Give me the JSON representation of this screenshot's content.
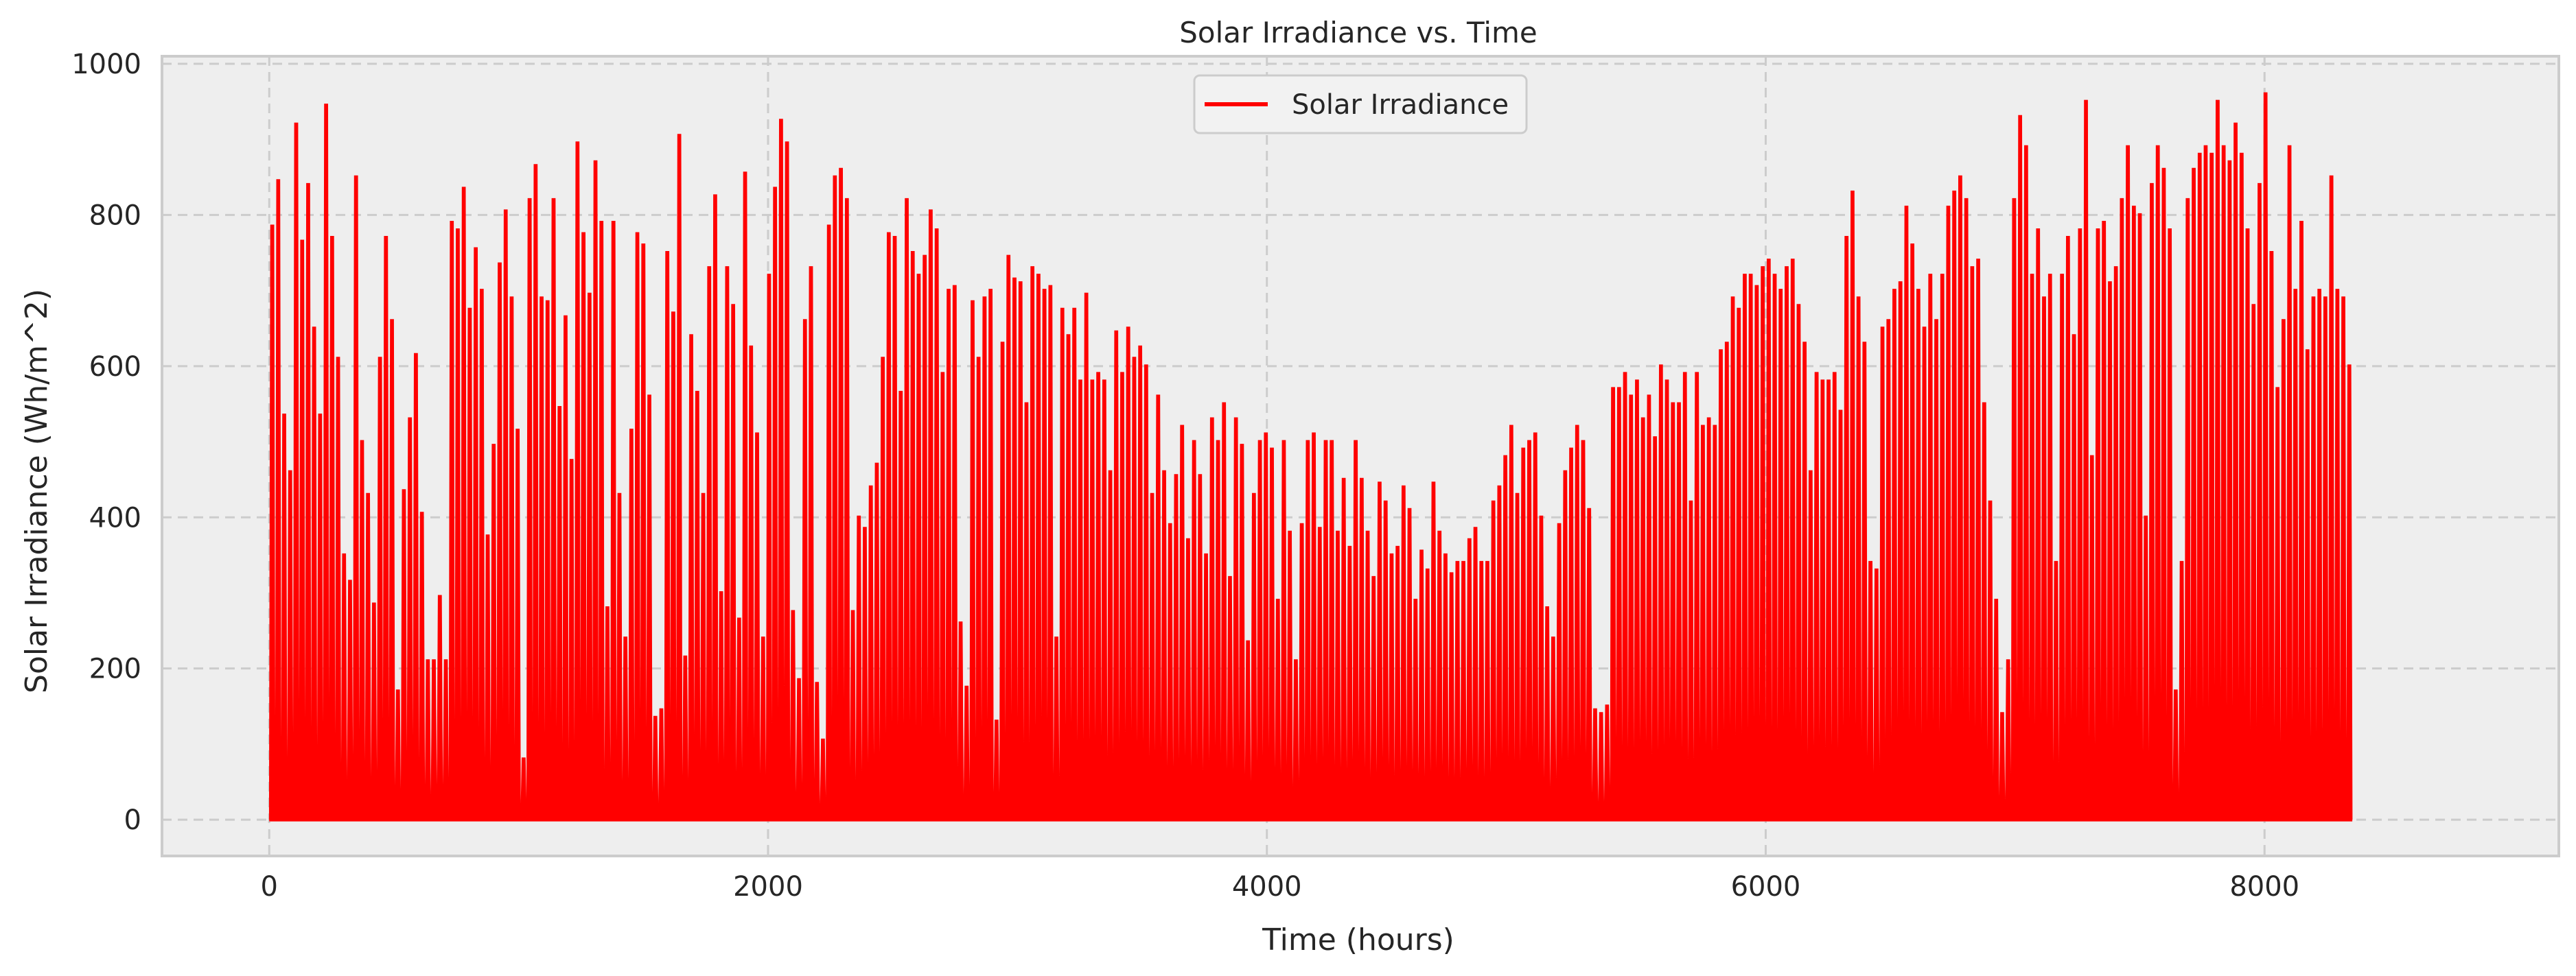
{
  "chart_data": {
    "type": "line",
    "title": "Solar Irradiance vs. Time",
    "xlabel": "Time (hours)",
    "ylabel": "Solar Irradiance (Wh/m^2)",
    "xlim": [
      -430,
      9180
    ],
    "ylim": [
      -48,
      1010
    ],
    "xticks": [
      0,
      2000,
      4000,
      6000,
      8000
    ],
    "yticks": [
      0,
      200,
      400,
      600,
      800,
      1000
    ],
    "grid": true,
    "legend_position": "top-center",
    "x_start_hours": 0,
    "x_end_hours": 8760,
    "x_step_hours": 24,
    "series": [
      {
        "name": "Solar Irradiance",
        "color": "#ff0000",
        "daily_peak_values": [
          785,
          845,
          535,
          460,
          920,
          765,
          840,
          650,
          535,
          945,
          770,
          610,
          350,
          315,
          850,
          500,
          430,
          285,
          610,
          770,
          660,
          170,
          435,
          530,
          615,
          405,
          210,
          210,
          295,
          210,
          790,
          780,
          835,
          675,
          755,
          700,
          375,
          495,
          735,
          805,
          690,
          515,
          80,
          820,
          865,
          690,
          685,
          820,
          545,
          665,
          475,
          895,
          775,
          695,
          870,
          790,
          280,
          790,
          430,
          240,
          515,
          775,
          760,
          560,
          135,
          145,
          750,
          670,
          905,
          215,
          640,
          565,
          430,
          730,
          825,
          300,
          730,
          680,
          265,
          855,
          625,
          510,
          240,
          720,
          835,
          925,
          895,
          275,
          185,
          660,
          730,
          180,
          105,
          785,
          850,
          860,
          820,
          275,
          400,
          385,
          440,
          470,
          610,
          775,
          770,
          565,
          820,
          750,
          720,
          745,
          805,
          780,
          590,
          700,
          705,
          260,
          175,
          685,
          610,
          690,
          700,
          130,
          630,
          745,
          715,
          710,
          550,
          730,
          720,
          700,
          705,
          240,
          675,
          640,
          675,
          580,
          695,
          580,
          590,
          580,
          460,
          645,
          590,
          650,
          610,
          625,
          600,
          430,
          560,
          460,
          390,
          455,
          520,
          370,
          500,
          455,
          350,
          530,
          500,
          550,
          320,
          530,
          495,
          235,
          430,
          500,
          510,
          490,
          290,
          500,
          380,
          210,
          390,
          500,
          510,
          385,
          500,
          500,
          380,
          450,
          360,
          500,
          450,
          380,
          320,
          445,
          420,
          350,
          360,
          440,
          410,
          290,
          355,
          330,
          445,
          380,
          350,
          325,
          340,
          340,
          370,
          385,
          340,
          340,
          420,
          440,
          480,
          520,
          430,
          490,
          500,
          510,
          400,
          280,
          240,
          390,
          460,
          490,
          520,
          500,
          410,
          145,
          140,
          150,
          570,
          570,
          590,
          560,
          580,
          530,
          560,
          505,
          600,
          580,
          550,
          550,
          590,
          420,
          590,
          520,
          530,
          520,
          620,
          630,
          690,
          675,
          720,
          720,
          705,
          730,
          740,
          720,
          700,
          730,
          740,
          680,
          630,
          460,
          590,
          580,
          580,
          590,
          540,
          770,
          830,
          690,
          630,
          340,
          330,
          650,
          660,
          700,
          710,
          810,
          760,
          700,
          650,
          720,
          660,
          720,
          810,
          830,
          850,
          820,
          730,
          740,
          550,
          420,
          290,
          140,
          210,
          820,
          930,
          890,
          720,
          780,
          690,
          720,
          340,
          720,
          770,
          640,
          780,
          950,
          480,
          780,
          790,
          710,
          730,
          820,
          890,
          810,
          800,
          400,
          840,
          890,
          860,
          780,
          170,
          340,
          820,
          860,
          880,
          890,
          880,
          950,
          890,
          870,
          920,
          880,
          780,
          680,
          840,
          960,
          750,
          570,
          660,
          890,
          700,
          790,
          620,
          690,
          700,
          690,
          850,
          700,
          690,
          600
        ]
      }
    ]
  }
}
